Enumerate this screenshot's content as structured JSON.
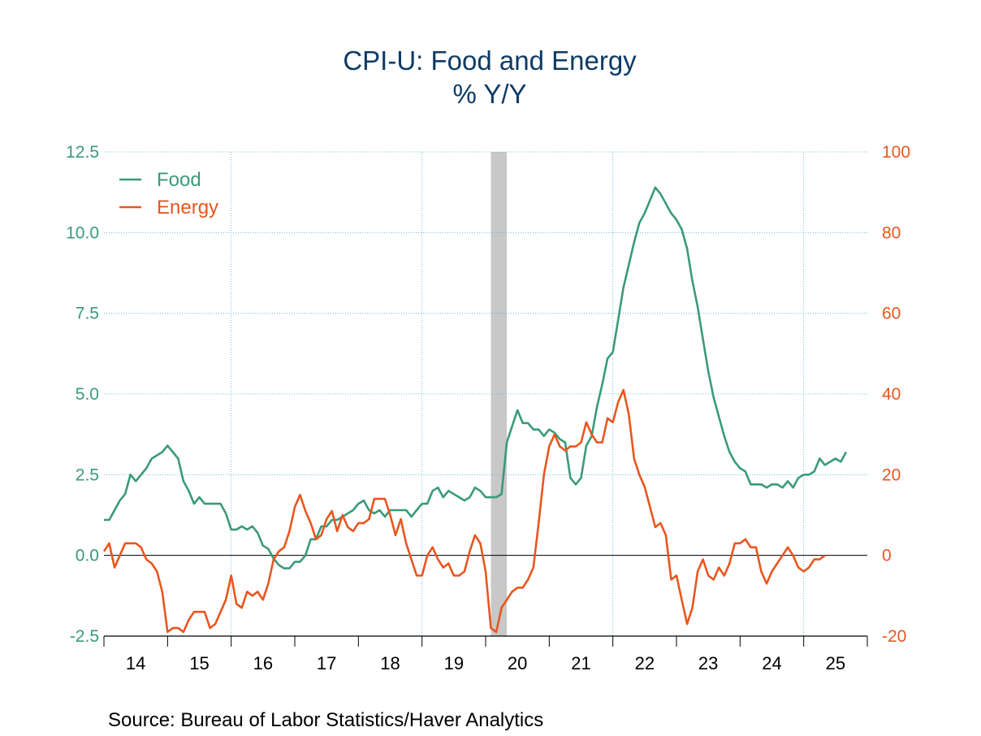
{
  "chart_data": {
    "type": "line",
    "title": "CPI-U: Food and Energy",
    "subtitle": "% Y/Y",
    "source": "Source:  Bureau of Labor Statistics/Haver Analytics",
    "x_start": "2014-01",
    "x_end": "2025-12",
    "x_tick_labels": [
      "14",
      "15",
      "16",
      "17",
      "18",
      "19",
      "20",
      "21",
      "22",
      "23",
      "24",
      "25"
    ],
    "y_left": {
      "lim": [
        -2.5,
        12.5
      ],
      "ticks": [
        12.5,
        10.0,
        7.5,
        5.0,
        2.5,
        0.0,
        -2.5
      ],
      "tick_labels": [
        "12.5",
        "10.0",
        "7.5",
        "5.0",
        "2.5",
        "0.0",
        "-2.5"
      ],
      "color": "#3a9a78"
    },
    "y_right": {
      "lim": [
        -20,
        100
      ],
      "ticks": [
        100,
        80,
        60,
        40,
        20,
        0,
        -20
      ],
      "tick_labels": [
        "100",
        "80",
        "60",
        "40",
        "20",
        "0",
        "-20"
      ],
      "color": "#e8561f"
    },
    "recession": {
      "start": "2020-02",
      "end": "2020-04"
    },
    "gridlines": {
      "vertical_years": [
        2016,
        2019,
        2022,
        2025
      ]
    },
    "legend_position": "top-left",
    "series": [
      {
        "name": "Food",
        "axis": "left",
        "color": "#3a9a78",
        "start": "2014-01",
        "values": [
          1.1,
          1.1,
          1.4,
          1.7,
          1.9,
          2.5,
          2.3,
          2.5,
          2.7,
          3.0,
          3.1,
          3.2,
          3.4,
          3.2,
          3.0,
          2.3,
          2.0,
          1.6,
          1.8,
          1.6,
          1.6,
          1.6,
          1.6,
          1.3,
          0.8,
          0.8,
          0.9,
          0.8,
          0.9,
          0.7,
          0.3,
          0.2,
          -0.1,
          -0.3,
          -0.4,
          -0.4,
          -0.2,
          -0.2,
          0.0,
          0.5,
          0.5,
          0.9,
          0.9,
          1.1,
          1.1,
          1.2,
          1.3,
          1.4,
          1.6,
          1.7,
          1.4,
          1.3,
          1.4,
          1.2,
          1.4,
          1.4,
          1.4,
          1.4,
          1.2,
          1.4,
          1.6,
          1.6,
          2.0,
          2.1,
          1.8,
          2.0,
          1.9,
          1.8,
          1.7,
          1.8,
          2.1,
          2.0,
          1.8,
          1.8,
          1.8,
          1.9,
          3.5,
          4.0,
          4.5,
          4.1,
          4.1,
          3.9,
          3.9,
          3.7,
          3.9,
          3.8,
          3.6,
          3.5,
          2.4,
          2.2,
          2.4,
          3.4,
          3.7,
          4.6,
          5.3,
          6.1,
          6.3,
          7.3,
          8.3,
          9.0,
          9.7,
          10.3,
          10.6,
          11.0,
          11.4,
          11.2,
          10.9,
          10.6,
          10.4,
          10.1,
          9.5,
          8.5,
          7.7,
          6.7,
          5.7,
          4.9,
          4.3,
          3.7,
          3.2,
          2.9,
          2.7,
          2.6,
          2.2,
          2.2,
          2.2,
          2.1,
          2.2,
          2.2,
          2.1,
          2.3,
          2.1,
          2.4,
          2.5,
          2.5,
          2.6,
          3.0,
          2.8,
          2.9,
          3.0,
          2.9,
          3.2
        ]
      },
      {
        "name": "Energy",
        "axis": "right",
        "color": "#e8561f",
        "start": "2014-01",
        "values": [
          1,
          3,
          -3,
          0,
          3,
          3,
          3,
          2,
          -1,
          -2,
          -4,
          -9,
          -19,
          -18,
          -18,
          -19,
          -16,
          -14,
          -14,
          -14,
          -18,
          -17,
          -14,
          -11,
          -5,
          -12,
          -13,
          -9,
          -10,
          -9,
          -11,
          -7,
          -1,
          1,
          2,
          6,
          12,
          15,
          11,
          8,
          4,
          5,
          9,
          11,
          6,
          10,
          7,
          6,
          8,
          8,
          9,
          14,
          14,
          14,
          10,
          5,
          9,
          3,
          -1,
          -5,
          -5,
          0,
          2,
          -1,
          -3,
          -2,
          -5,
          -5,
          -4,
          1,
          5,
          3,
          -4,
          -18,
          -19,
          -13,
          -11,
          -9,
          -8,
          -8,
          -6,
          -3,
          8,
          20,
          27,
          30,
          27,
          26,
          27,
          27,
          28,
          33,
          30,
          28,
          28,
          34,
          33,
          38,
          41,
          35,
          24,
          20,
          17,
          12,
          7,
          8,
          5,
          -6,
          -5,
          -11,
          -17,
          -13,
          -4,
          -1,
          -5,
          -6,
          -3,
          -5,
          -2,
          3,
          3,
          4,
          2,
          2,
          -4,
          -7,
          -4,
          -2,
          0,
          2,
          0,
          -3,
          -4,
          -3,
          -1,
          -1,
          0
        ]
      }
    ]
  }
}
